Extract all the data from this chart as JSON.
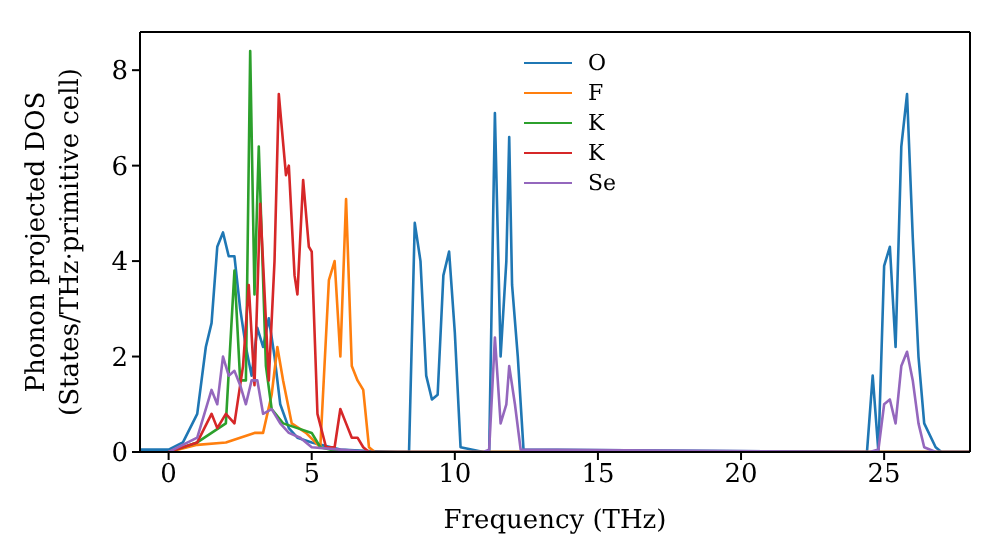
{
  "chart_data": {
    "type": "line",
    "xlabel": "Frequency (THz)",
    "ylabel": "Phonon projected DOS\n(States/THz·primitive cell)",
    "xlim": [
      -1,
      28
    ],
    "xticks": [
      0,
      5,
      10,
      15,
      20,
      25
    ],
    "ylim": [
      0,
      8.8
    ],
    "yticks": [
      0,
      2,
      4,
      6,
      8
    ],
    "legend": "top",
    "grid": false,
    "series": [
      {
        "name": "O",
        "color": "#1f77b4",
        "x": [
          -1,
          0,
          0.5,
          1,
          1.3,
          1.5,
          1.7,
          1.9,
          2.1,
          2.3,
          2.5,
          2.7,
          2.9,
          3.1,
          3.3,
          3.5,
          3.7,
          3.9,
          4.2,
          4.5,
          5,
          6,
          7,
          8,
          8.4,
          8.6,
          8.8,
          9,
          9.2,
          9.4,
          9.6,
          9.8,
          10,
          10.2,
          11,
          11.2,
          11.4,
          11.6,
          11.8,
          11.9,
          12,
          12.2,
          12.4,
          24,
          24.4,
          24.6,
          24.8,
          25,
          25.2,
          25.4,
          25.6,
          25.8,
          26,
          26.2,
          26.4,
          26.8,
          27,
          28
        ],
        "values": [
          0.05,
          0.05,
          0.2,
          0.8,
          2.2,
          2.7,
          4.3,
          4.6,
          4.1,
          4.1,
          3,
          2.2,
          1.6,
          2.6,
          2.2,
          2.8,
          2,
          1,
          0.5,
          0.3,
          0.2,
          0.05,
          0.02,
          0,
          0,
          4.8,
          4,
          1.6,
          1.1,
          1.2,
          3.7,
          4.2,
          2.5,
          0.1,
          0,
          0,
          7.1,
          2,
          4,
          6.6,
          3.5,
          2,
          0.05,
          0,
          0,
          1.6,
          0,
          3.9,
          4.3,
          2.2,
          6.4,
          7.5,
          4.5,
          2,
          0.6,
          0.1,
          0,
          0
        ]
      },
      {
        "name": "F",
        "color": "#ff7f0e",
        "x": [
          0,
          1,
          2,
          2.5,
          3,
          3.3,
          3.6,
          3.8,
          4,
          4.3,
          4.8,
          5.3,
          5.6,
          5.8,
          6,
          6.2,
          6.4,
          6.6,
          6.8,
          7,
          7.2,
          28
        ],
        "values": [
          0,
          0.15,
          0.2,
          0.3,
          0.4,
          0.4,
          1.2,
          2.2,
          1.5,
          0.6,
          0.4,
          0.1,
          3.6,
          4,
          2,
          5.3,
          1.8,
          1.5,
          1.3,
          0.1,
          0,
          0
        ]
      },
      {
        "name": "K",
        "color": "#2ca02c",
        "x": [
          0,
          1,
          1.5,
          2,
          2.3,
          2.5,
          2.7,
          2.85,
          3,
          3.15,
          3.4,
          3.6,
          4,
          4.5,
          5,
          5.3,
          6,
          28
        ],
        "values": [
          0,
          0.2,
          0.4,
          0.6,
          3.8,
          1.5,
          1.5,
          8.4,
          3.3,
          6.4,
          1.8,
          0.9,
          0.6,
          0.5,
          0.4,
          0.1,
          0,
          0
        ]
      },
      {
        "name": "K",
        "color": "#d62728",
        "x": [
          0,
          1,
          1.5,
          1.7,
          2,
          2.3,
          2.6,
          2.8,
          3,
          3.2,
          3.5,
          3.7,
          3.85,
          4.1,
          4.2,
          4.4,
          4.5,
          4.7,
          4.9,
          5,
          5.2,
          5.5,
          5.8,
          6,
          6.2,
          6.4,
          6.6,
          6.8,
          7,
          28
        ],
        "values": [
          0,
          0.2,
          0.8,
          0.5,
          0.8,
          0.6,
          1.8,
          3.5,
          1.4,
          5.2,
          1.5,
          4,
          7.5,
          5.8,
          6,
          3.7,
          3.3,
          5.7,
          4.3,
          4.2,
          0.8,
          0.1,
          0.1,
          0.9,
          0.6,
          0.3,
          0.3,
          0.1,
          0,
          0
        ]
      },
      {
        "name": "Se",
        "color": "#9467bd",
        "x": [
          0,
          1,
          1.5,
          1.7,
          1.9,
          2.1,
          2.3,
          2.5,
          2.7,
          2.9,
          3.1,
          3.3,
          3.6,
          3.9,
          4.2,
          4.6,
          5,
          6,
          7,
          11,
          11.2,
          11.4,
          11.6,
          11.8,
          11.9,
          12.1,
          12.3,
          24.5,
          24.8,
          25,
          25.2,
          25.4,
          25.6,
          25.8,
          26,
          26.2,
          26.4,
          26.8,
          28
        ],
        "values": [
          0,
          0.3,
          1.3,
          1,
          2,
          1.6,
          1.7,
          1.4,
          1,
          1.5,
          1.5,
          0.8,
          0.9,
          0.6,
          0.4,
          0.3,
          0.1,
          0.05,
          0,
          0,
          0.05,
          2.4,
          0.6,
          1,
          1.8,
          1,
          0.05,
          0,
          0.05,
          1,
          1.1,
          0.6,
          1.8,
          2.1,
          1.5,
          0.6,
          0.1,
          0,
          0
        ]
      }
    ]
  }
}
